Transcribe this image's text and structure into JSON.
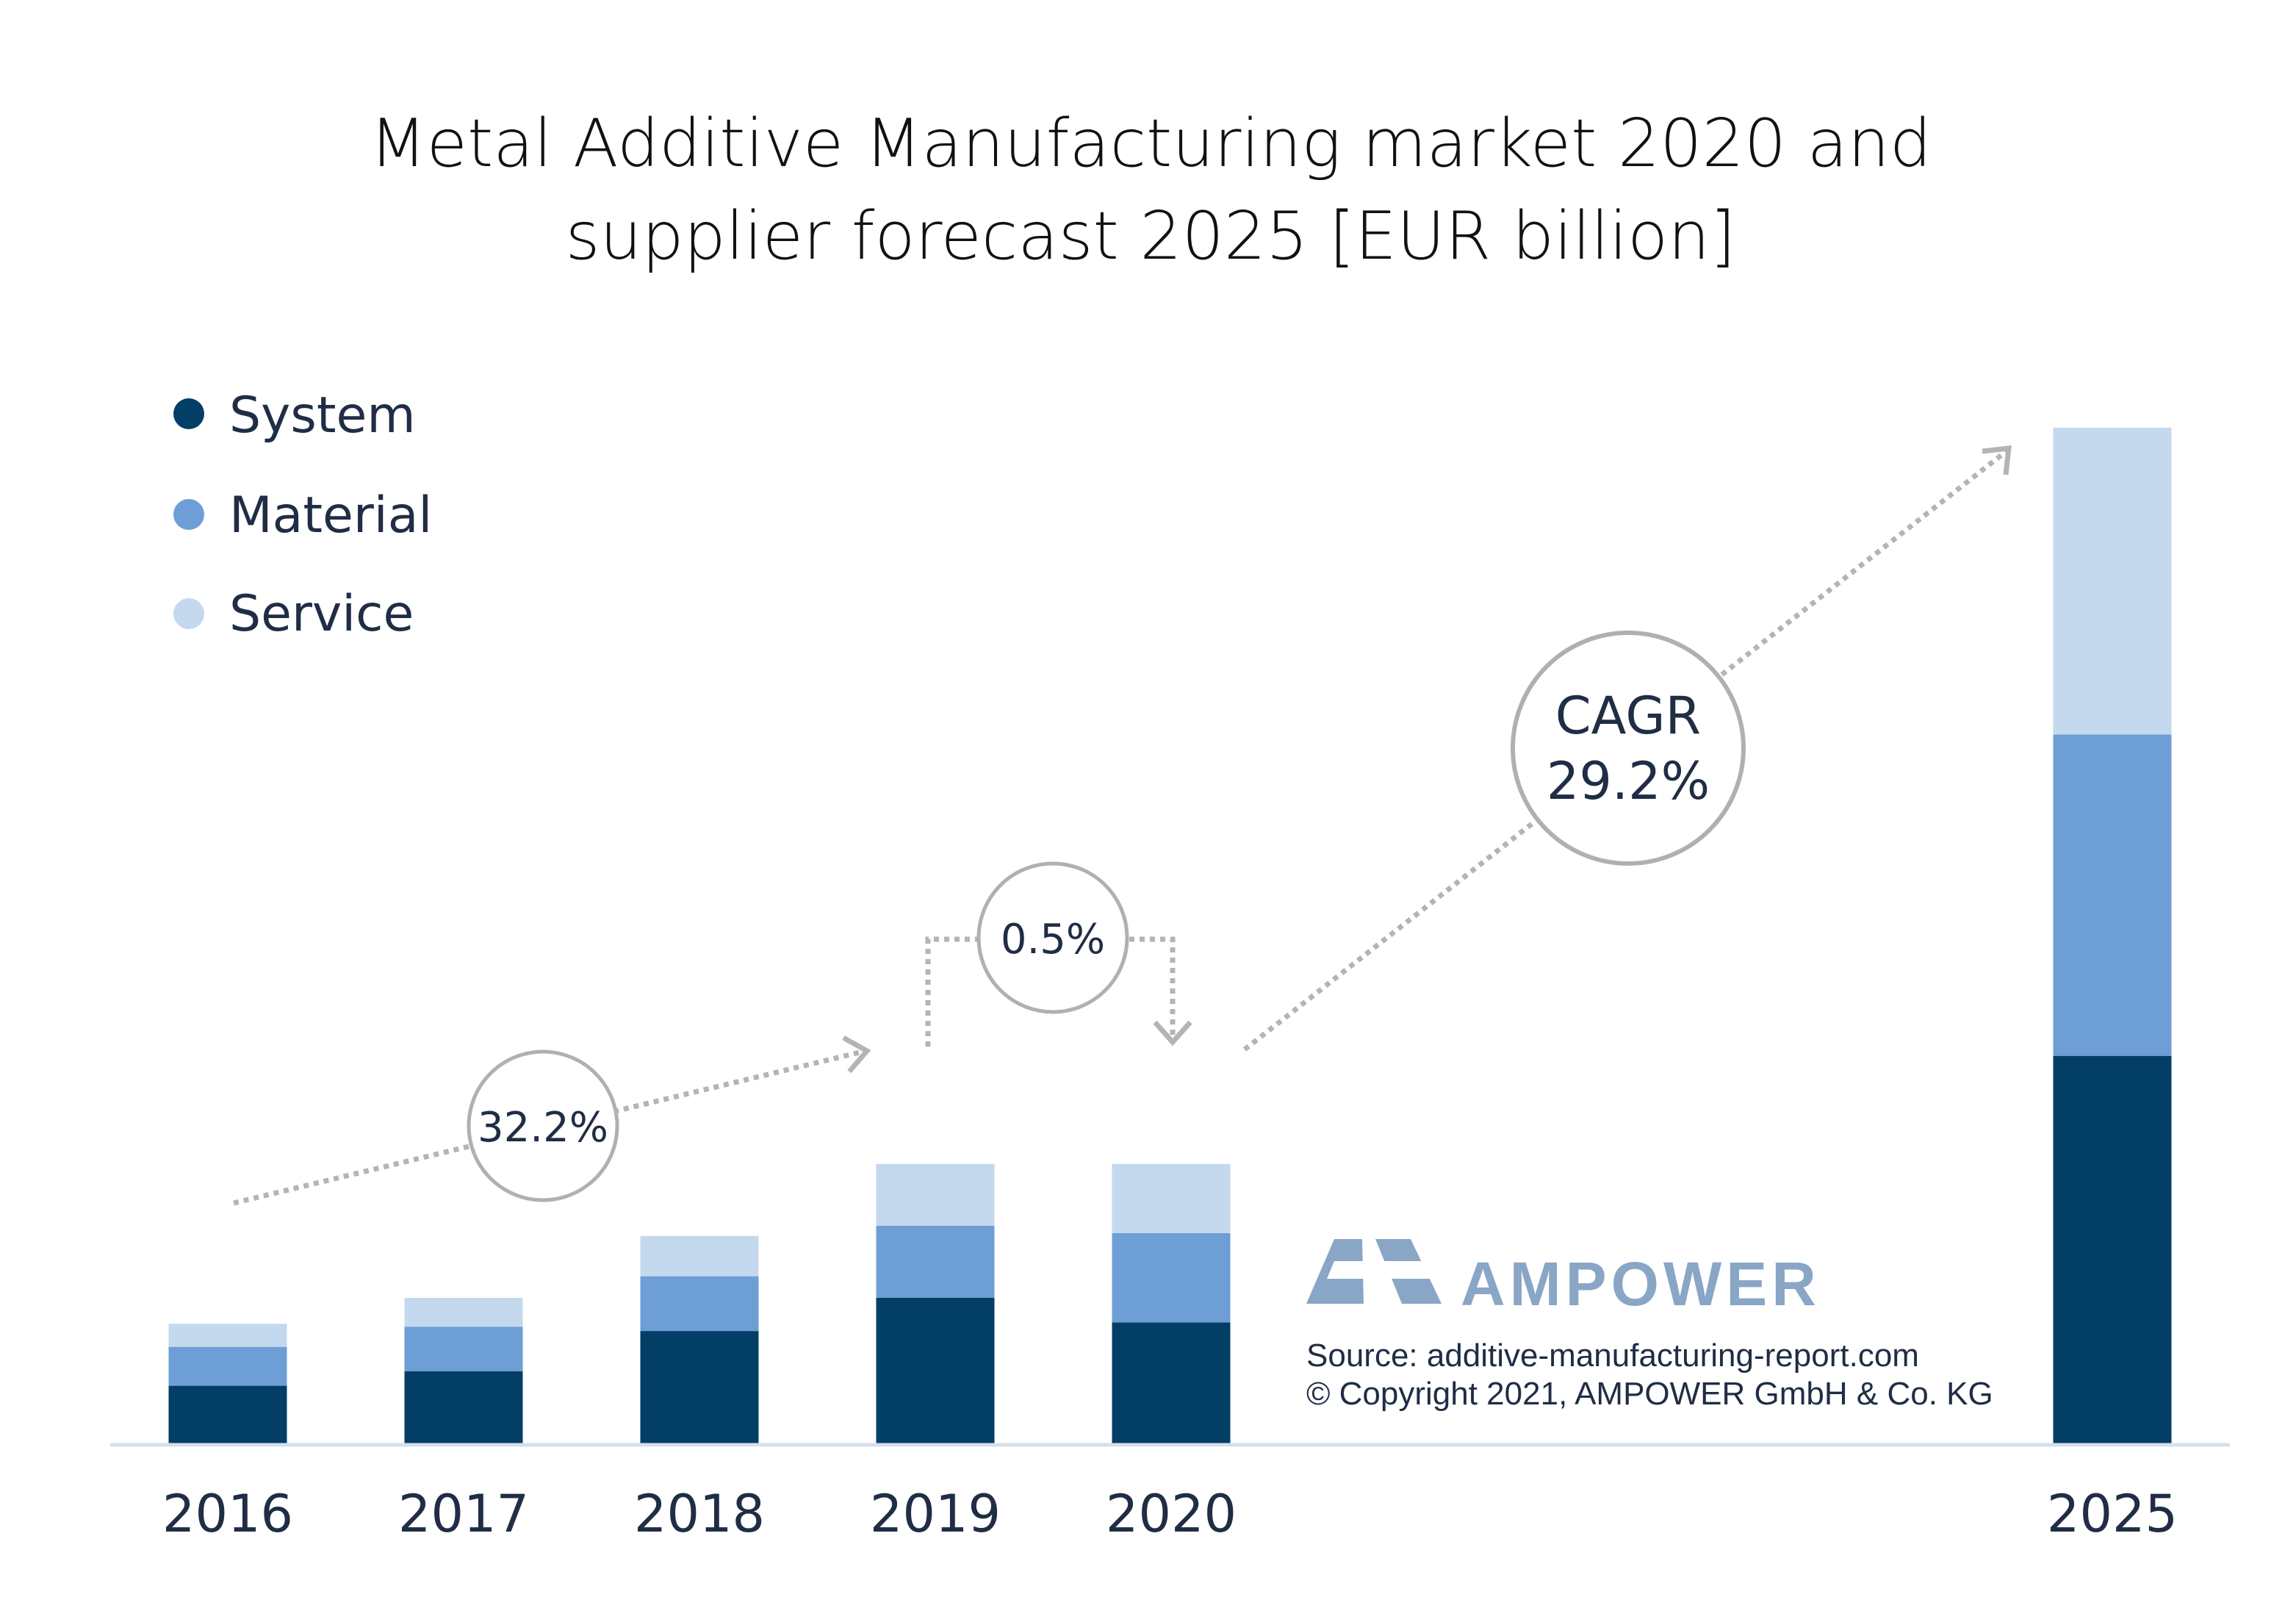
{
  "chart_data": {
    "type": "bar",
    "stacked": true,
    "title_lines": [
      "Metal Additive Manufacturing market 2020 and",
      "supplier forecast 2025 [EUR billion]"
    ],
    "categories": [
      "2016",
      "2017",
      "2018",
      "2019",
      "2020",
      "2025"
    ],
    "series": [
      {
        "name": "System",
        "color": "#023e66",
        "values": [
          0.4,
          0.5,
          0.78,
          1.01,
          0.84,
          2.69
        ]
      },
      {
        "name": "Material",
        "color": "#6d9ed6",
        "values": [
          0.27,
          0.31,
          0.38,
          0.5,
          0.62,
          2.23
        ]
      },
      {
        "name": "Service",
        "color": "#c4d8ee",
        "values": [
          0.16,
          0.2,
          0.28,
          0.43,
          0.48,
          2.13
        ]
      }
    ],
    "ylim": [
      0,
      7.05
    ],
    "legend_position": "top-left",
    "grid": false,
    "annotations": [
      {
        "lines": [
          "32.2%"
        ]
      },
      {
        "lines": [
          "0.5%"
        ]
      },
      {
        "lines": [
          "CAGR",
          "29.2%"
        ]
      }
    ]
  },
  "branding": {
    "logo_text": "AMPOWER",
    "logo_icon": "ampower-triangle-logo",
    "source_line": "Source: additive-manufacturing-report.com",
    "copyright_line": "© Copyright 2021, AMPOWER GmbH & Co. KG",
    "logo_color": "#8aa6c6"
  },
  "colors": {
    "axis": "#d6e0ec",
    "annotation_stroke": "#b0b0b0",
    "arrow": "#b4b4b4"
  }
}
